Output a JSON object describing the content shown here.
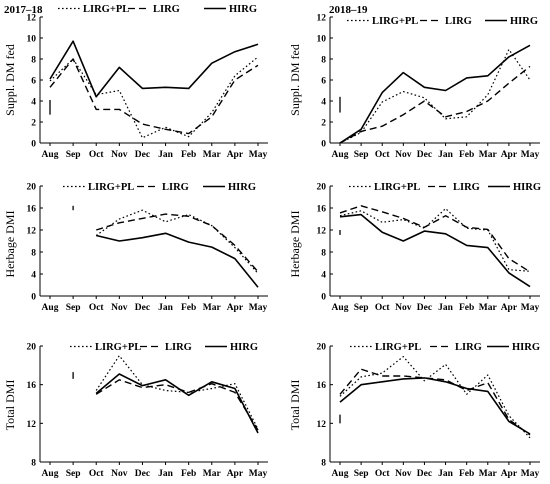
{
  "chart_data": [
    {
      "type": "line",
      "title": "2017–18",
      "ylabel": "Suppl. DM fed",
      "categories": [
        "Aug",
        "Sep",
        "Oct",
        "Nov",
        "Dec",
        "Jan",
        "Feb",
        "Mar",
        "Apr",
        "May"
      ],
      "ylim": [
        0,
        12
      ],
      "yticks": [
        0,
        2,
        4,
        6,
        8,
        10,
        12
      ],
      "error_bar": {
        "x": "Aug",
        "y": [
          2.7,
          4.1
        ]
      },
      "series": [
        {
          "name": "LIRG+PL",
          "style": "dotted",
          "values": [
            5.9,
            8.0,
            4.6,
            5.0,
            0.5,
            1.5,
            0.6,
            2.9,
            6.4,
            8.2
          ]
        },
        {
          "name": "LIRG",
          "style": "dashed",
          "values": [
            5.3,
            8.0,
            3.2,
            3.2,
            1.8,
            1.3,
            0.9,
            2.5,
            6.0,
            7.4
          ]
        },
        {
          "name": "HIRG",
          "style": "solid",
          "values": [
            6.1,
            9.7,
            4.4,
            7.2,
            5.2,
            5.3,
            5.2,
            7.6,
            8.7,
            9.4
          ]
        }
      ]
    },
    {
      "type": "line",
      "title": "2018–19",
      "ylabel": "Suppl. DM fed",
      "categories": [
        "Aug",
        "Sep",
        "Oct",
        "Nov",
        "Dec",
        "Jan",
        "Feb",
        "Mar",
        "Apr",
        "May"
      ],
      "ylim": [
        0,
        12
      ],
      "yticks": [
        0,
        2,
        4,
        6,
        8,
        10,
        12
      ],
      "error_bar": {
        "x": "Aug",
        "y": [
          2.9,
          4.4
        ]
      },
      "series": [
        {
          "name": "LIRG+PL",
          "style": "dotted",
          "values": [
            0,
            1.0,
            3.9,
            4.9,
            4.3,
            2.3,
            2.5,
            4.6,
            8.9,
            6.0
          ]
        },
        {
          "name": "LIRG",
          "style": "dashed",
          "values": [
            0,
            1.1,
            1.6,
            2.7,
            4.0,
            2.5,
            3.0,
            4.0,
            5.7,
            7.3
          ]
        },
        {
          "name": "HIRG",
          "style": "solid",
          "values": [
            0,
            1.3,
            4.8,
            6.7,
            5.3,
            5.0,
            6.2,
            6.4,
            8.2,
            9.3
          ]
        }
      ]
    },
    {
      "type": "line",
      "title": "",
      "ylabel": "Herbage DMI",
      "categories": [
        "Aug",
        "Sep",
        "Oct",
        "Nov",
        "Dec",
        "Jan",
        "Feb",
        "Mar",
        "Apr",
        "May"
      ],
      "ylim": [
        0,
        20
      ],
      "yticks": [
        0,
        4,
        8,
        12,
        16,
        20
      ],
      "error_bar": {
        "x": "Sep",
        "y": [
          15.6,
          16.4
        ]
      },
      "series": [
        {
          "name": "LIRG+PL",
          "style": "dotted",
          "values": [
            null,
            null,
            11.0,
            14.0,
            15.6,
            13.5,
            14.8,
            12.8,
            8.8,
            4.1
          ]
        },
        {
          "name": "LIRG",
          "style": "dashed",
          "values": [
            null,
            null,
            12.0,
            13.3,
            14.1,
            14.9,
            14.5,
            12.8,
            9.2,
            4.4
          ]
        },
        {
          "name": "HIRG",
          "style": "solid",
          "values": [
            null,
            null,
            11.0,
            10.0,
            10.6,
            11.4,
            9.8,
            8.9,
            6.8,
            1.6
          ]
        }
      ]
    },
    {
      "type": "line",
      "title": "",
      "ylabel": "Herbage DMI",
      "categories": [
        "Aug",
        "Sep",
        "Oct",
        "Nov",
        "Dec",
        "Jan",
        "Feb",
        "Mar",
        "Apr",
        "May"
      ],
      "ylim": [
        0,
        20
      ],
      "yticks": [
        0,
        4,
        8,
        12,
        16,
        20
      ],
      "error_bar": {
        "x": "Aug",
        "y": [
          11.1,
          12.0
        ]
      },
      "series": [
        {
          "name": "LIRG+PL",
          "style": "dotted",
          "values": [
            14.6,
            15.5,
            13.4,
            13.9,
            12.3,
            15.9,
            12.3,
            12.0,
            4.8,
            4.5
          ]
        },
        {
          "name": "LIRG",
          "style": "dashed",
          "values": [
            15.1,
            16.4,
            15.3,
            14.1,
            12.5,
            14.6,
            12.5,
            12.1,
            6.8,
            4.4
          ]
        },
        {
          "name": "HIRG",
          "style": "solid",
          "values": [
            14.4,
            14.8,
            11.6,
            10.0,
            11.8,
            11.3,
            9.2,
            8.8,
            4.2,
            1.7
          ]
        }
      ]
    },
    {
      "type": "line",
      "title": "",
      "ylabel": "Total DMI",
      "categories": [
        "Aug",
        "Sep",
        "Oct",
        "Nov",
        "Dec",
        "Jan",
        "Feb",
        "Mar",
        "Apr",
        "May"
      ],
      "ylim": [
        8,
        20
      ],
      "yticks": [
        8,
        12,
        16,
        20
      ],
      "error_bar": {
        "x": "Sep",
        "y": [
          16.6,
          17.3
        ]
      },
      "series": [
        {
          "name": "LIRG+PL",
          "style": "dotted",
          "values": [
            null,
            null,
            15.4,
            19.0,
            16.0,
            15.4,
            15.2,
            15.6,
            16.1,
            11.4
          ]
        },
        {
          "name": "LIRG",
          "style": "dashed",
          "values": [
            null,
            null,
            15.0,
            16.5,
            15.7,
            16.0,
            15.2,
            16.1,
            15.2,
            11.3
          ]
        },
        {
          "name": "HIRG",
          "style": "solid",
          "values": [
            null,
            null,
            15.1,
            17.1,
            15.9,
            16.5,
            14.9,
            16.3,
            15.6,
            11.0
          ]
        }
      ]
    },
    {
      "type": "line",
      "title": "",
      "ylabel": "Total DMI",
      "categories": [
        "Aug",
        "Sep",
        "Oct",
        "Nov",
        "Dec",
        "Jan",
        "Feb",
        "Mar",
        "Apr",
        "May"
      ],
      "ylim": [
        8,
        20
      ],
      "yticks": [
        8,
        12,
        16,
        20
      ],
      "error_bar": {
        "x": "Aug",
        "y": [
          12.0,
          12.9
        ]
      },
      "series": [
        {
          "name": "LIRG+PL",
          "style": "dotted",
          "values": [
            14.8,
            16.8,
            17.2,
            18.9,
            16.4,
            18.1,
            15.0,
            17.0,
            12.8,
            10.5
          ]
        },
        {
          "name": "LIRG",
          "style": "dashed",
          "values": [
            15.0,
            17.6,
            16.9,
            16.9,
            16.7,
            16.5,
            15.4,
            16.2,
            12.4,
            10.8
          ]
        },
        {
          "name": "HIRG",
          "style": "solid",
          "values": [
            14.2,
            16.0,
            16.3,
            16.6,
            16.7,
            16.3,
            15.6,
            15.3,
            12.2,
            10.9
          ]
        }
      ]
    }
  ],
  "colors": {
    "line": "#000000"
  }
}
